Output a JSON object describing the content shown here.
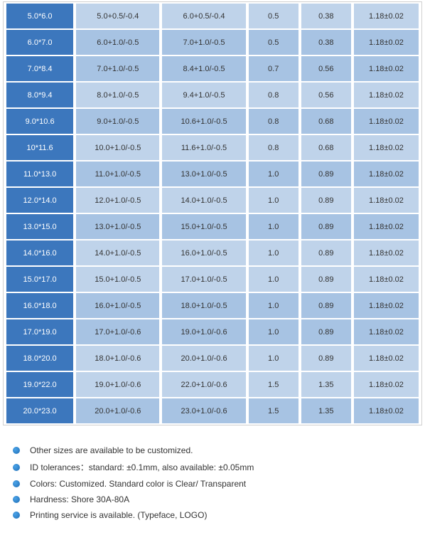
{
  "table": {
    "row_shade_a": "#bfd3ea",
    "row_shade_b": "#a7c3e3",
    "header_col_bg": "#3c77bd",
    "header_col_text": "#ffffff",
    "rows": [
      {
        "shade": "a",
        "size": "5.0*6.0",
        "c1": "5.0+0.5/-0.4",
        "c2": "6.0+0.5/-0.4",
        "c3": "0.5",
        "c4": "0.38",
        "c5": "1.18±0.02"
      },
      {
        "shade": "b",
        "size": "6.0*7.0",
        "c1": "6.0+1.0/-0.5",
        "c2": "7.0+1.0/-0.5",
        "c3": "0.5",
        "c4": "0.38",
        "c5": "1.18±0.02"
      },
      {
        "shade": "b",
        "size": "7.0*8.4",
        "c1": "7.0+1.0/-0.5",
        "c2": "8.4+1.0/-0.5",
        "c3": "0.7",
        "c4": "0.56",
        "c5": "1.18±0.02"
      },
      {
        "shade": "a",
        "size": "8.0*9.4",
        "c1": "8.0+1.0/-0.5",
        "c2": "9.4+1.0/-0.5",
        "c3": "0.8",
        "c4": "0.56",
        "c5": "1.18±0.02"
      },
      {
        "shade": "b",
        "size": "9.0*10.6",
        "c1": "9.0+1.0/-0.5",
        "c2": "10.6+1.0/-0.5",
        "c3": "0.8",
        "c4": "0.68",
        "c5": "1.18±0.02"
      },
      {
        "shade": "a",
        "size": "10*11.6",
        "c1": "10.0+1.0/-0.5",
        "c2": "11.6+1.0/-0.5",
        "c3": "0.8",
        "c4": "0.68",
        "c5": "1.18±0.02"
      },
      {
        "shade": "b",
        "size": "11.0*13.0",
        "c1": "11.0+1.0/-0.5",
        "c2": "13.0+1.0/-0.5",
        "c3": "1.0",
        "c4": "0.89",
        "c5": "1.18±0.02"
      },
      {
        "shade": "a",
        "size": "12.0*14.0",
        "c1": "12.0+1.0/-0.5",
        "c2": "14.0+1.0/-0.5",
        "c3": "1.0",
        "c4": "0.89",
        "c5": "1.18±0.02"
      },
      {
        "shade": "b",
        "size": "13.0*15.0",
        "c1": "13.0+1.0/-0.5",
        "c2": "15.0+1.0/-0.5",
        "c3": "1.0",
        "c4": "0.89",
        "c5": "1.18±0.02"
      },
      {
        "shade": "a",
        "size": "14.0*16.0",
        "c1": "14.0+1.0/-0.5",
        "c2": "16.0+1.0/-0.5",
        "c3": "1.0",
        "c4": "0.89",
        "c5": "1.18±0.02"
      },
      {
        "shade": "a",
        "size": "15.0*17.0",
        "c1": "15.0+1.0/-0.5",
        "c2": "17.0+1.0/-0.5",
        "c3": "1.0",
        "c4": "0.89",
        "c5": "1.18±0.02"
      },
      {
        "shade": "b",
        "size": "16.0*18.0",
        "c1": "16.0+1.0/-0.5",
        "c2": "18.0+1.0/-0.5",
        "c3": "1.0",
        "c4": "0.89",
        "c5": "1.18±0.02"
      },
      {
        "shade": "b",
        "size": "17.0*19.0",
        "c1": "17.0+1.0/-0.6",
        "c2": "19.0+1.0/-0.6",
        "c3": "1.0",
        "c4": "0.89",
        "c5": "1.18±0.02"
      },
      {
        "shade": "a",
        "size": "18.0*20.0",
        "c1": "18.0+1.0/-0.6",
        "c2": "20.0+1.0/-0.6",
        "c3": "1.0",
        "c4": "0.89",
        "c5": "1.18±0.02"
      },
      {
        "shade": "a",
        "size": "19.0*22.0",
        "c1": "19.0+1.0/-0.6",
        "c2": "22.0+1.0/-0.6",
        "c3": "1.5",
        "c4": "1.35",
        "c5": "1.18±0.02"
      },
      {
        "shade": "b",
        "size": "20.0*23.0",
        "c1": "20.0+1.0/-0.6",
        "c2": "23.0+1.0/-0.6",
        "c3": "1.5",
        "c4": "1.35",
        "c5": "1.18±0.02"
      }
    ]
  },
  "notes": [
    "Other sizes are available to be customized.",
    "ID tolerances：standard: ±0.1mm, also available: ±0.05mm",
    "Colors: Customized. Standard color is Clear/ Transparent",
    "Hardness: Shore 30A-80A",
    "Printing service is available. (Typeface, LOGO)"
  ]
}
